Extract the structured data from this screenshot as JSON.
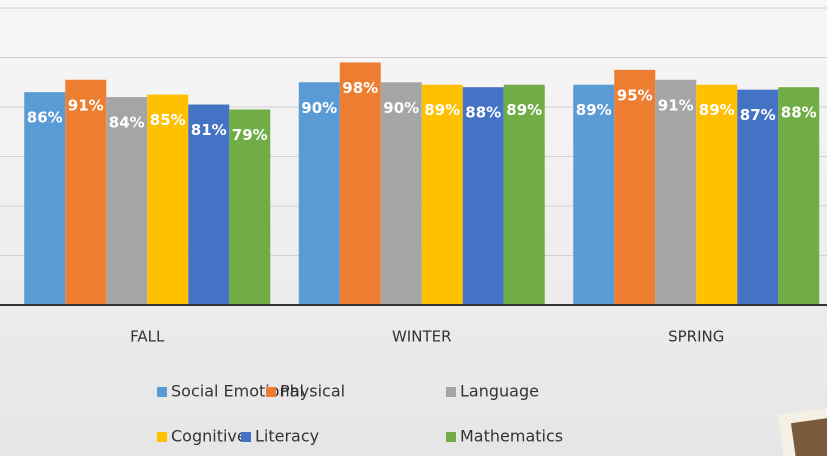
{
  "chart_data": {
    "type": "bar",
    "categories": [
      "FALL",
      "WINTER",
      "SPRING"
    ],
    "series": [
      {
        "name": "Social Emotional",
        "color": "#5b9bd5",
        "values": [
          86,
          90,
          89
        ],
        "value_labels": [
          "86%",
          "90%",
          "89%"
        ]
      },
      {
        "name": "Physical",
        "color": "#ed7d31",
        "values": [
          91,
          98,
          95
        ],
        "value_labels": [
          "91%",
          "98%",
          "95%"
        ]
      },
      {
        "name": "Language",
        "color": "#a5a5a5",
        "values": [
          84,
          90,
          91
        ],
        "value_labels": [
          "84%",
          "90%",
          "91%"
        ]
      },
      {
        "name": "Cognitive",
        "color": "#ffc000",
        "values": [
          85,
          89,
          89
        ],
        "value_labels": [
          "85%",
          "89%",
          "89%"
        ]
      },
      {
        "name": "Literacy",
        "color": "#4472c4",
        "values": [
          81,
          88,
          87
        ],
        "value_labels": [
          "81%",
          "88%",
          "87%"
        ]
      },
      {
        "name": "Mathematics",
        "color": "#70ad47",
        "values": [
          79,
          89,
          88
        ],
        "value_labels": [
          "79%",
          "89%",
          "88%"
        ]
      }
    ],
    "ylim": [
      0,
      120
    ],
    "yticks": [
      0,
      20,
      40,
      60,
      80,
      100,
      120
    ],
    "grid": true,
    "legend": "bottom"
  }
}
